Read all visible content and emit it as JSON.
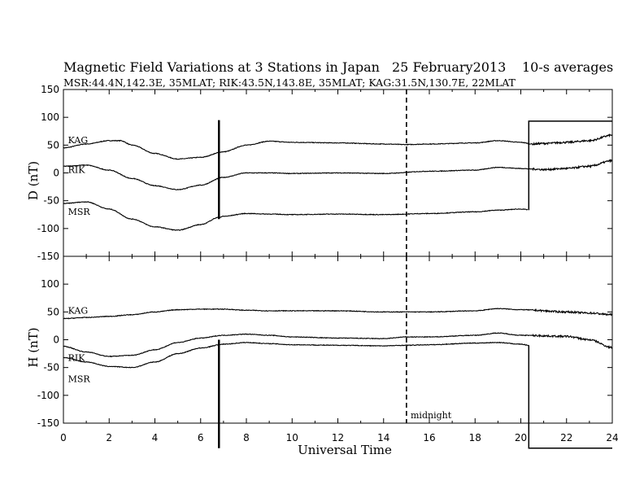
{
  "header": {
    "title": "Magnetic Field Variations at 3 Stations in Japan",
    "date": "25 February2013",
    "averaging": "10-s averages",
    "stations": "MSR:44.4N,142.3E, 35MLAT;  RIK:43.5N,143.8E, 35MLAT;  KAG:31.5N,130.7E, 22MLAT"
  },
  "chart_data": [
    {
      "type": "line",
      "panel": "D",
      "ylabel": "D (nT)",
      "xlim": [
        0,
        24
      ],
      "ylim": [
        -150,
        150
      ],
      "yticks": [
        150,
        100,
        50,
        0,
        -50,
        -100,
        -150
      ],
      "series": [
        {
          "name": "KAG",
          "x": [
            0,
            1,
            2,
            2.5,
            3,
            4,
            5,
            6,
            7,
            8,
            9,
            10,
            12,
            14,
            15,
            16,
            18,
            19,
            20,
            20.5,
            21,
            22,
            23,
            24
          ],
          "y": [
            45,
            52,
            58,
            58,
            50,
            35,
            25,
            28,
            38,
            50,
            57,
            55,
            54,
            52,
            51,
            52,
            54,
            58,
            55,
            52,
            53,
            55,
            58,
            68
          ]
        },
        {
          "name": "RIK",
          "x": [
            0,
            1,
            2,
            3,
            4,
            5,
            6,
            7,
            8,
            9,
            10,
            12,
            14,
            16,
            18,
            19,
            20,
            20.5,
            21,
            22,
            23,
            24
          ],
          "y": [
            12,
            14,
            5,
            -10,
            -23,
            -30,
            -22,
            -8,
            0,
            0,
            -1,
            0,
            -1,
            3,
            5,
            10,
            8,
            7,
            6,
            8,
            12,
            22
          ]
        },
        {
          "name": "MSR",
          "x": [
            0,
            1,
            2,
            3,
            4,
            5,
            6,
            6.8,
            7,
            8,
            9,
            10,
            12,
            14,
            16,
            18,
            19,
            20,
            20.3
          ],
          "y": [
            -55,
            -52,
            -65,
            -83,
            -97,
            -103,
            -93,
            -80,
            -78,
            -73,
            -74,
            -75,
            -74,
            -75,
            -73,
            -70,
            -67,
            -65,
            -66
          ]
        }
      ],
      "markers": [
        {
          "kind": "solid-vertical",
          "x": 6.8,
          "y_from": -83,
          "y_to": 95
        },
        {
          "kind": "dashed-vertical",
          "x": 15
        },
        {
          "kind": "step",
          "points": [
            [
              20.35,
              -67
            ],
            [
              20.35,
              93
            ],
            [
              24,
              93
            ]
          ]
        }
      ]
    },
    {
      "type": "line",
      "panel": "H",
      "ylabel": "H (nT)",
      "xlabel": "Universal Time",
      "xlim": [
        0,
        24
      ],
      "ylim": [
        -150,
        150
      ],
      "xticks": [
        0,
        2,
        4,
        6,
        8,
        10,
        12,
        14,
        16,
        18,
        20,
        22,
        24
      ],
      "yticks": [
        150,
        100,
        50,
        0,
        -50,
        -100,
        -150
      ],
      "series": [
        {
          "name": "KAG",
          "x": [
            0,
            1,
            2,
            3,
            4,
            5,
            6,
            7,
            8,
            9,
            10,
            12,
            14,
            16,
            18,
            19,
            20,
            22,
            23,
            24
          ],
          "y": [
            38,
            40,
            42,
            45,
            50,
            54,
            55,
            55,
            53,
            52,
            52,
            52,
            50,
            50,
            52,
            56,
            54,
            50,
            48,
            45
          ]
        },
        {
          "name": "RIK",
          "x": [
            0,
            1,
            2,
            3,
            4,
            5,
            6,
            7,
            8,
            9,
            10,
            12,
            14,
            15,
            16,
            18,
            19,
            20,
            22,
            23,
            24
          ],
          "y": [
            -12,
            -22,
            -30,
            -28,
            -18,
            -5,
            3,
            8,
            10,
            8,
            5,
            3,
            2,
            5,
            5,
            8,
            12,
            8,
            6,
            0,
            -14
          ]
        },
        {
          "name": "MSR",
          "x": [
            0,
            1,
            2,
            3,
            4,
            5,
            6,
            7,
            8,
            9,
            10,
            12,
            14,
            15,
            16,
            18,
            19,
            20,
            20.35
          ],
          "y": [
            -32,
            -40,
            -48,
            -50,
            -40,
            -25,
            -15,
            -8,
            -5,
            -7,
            -9,
            -10,
            -11,
            -10,
            -9,
            -6,
            -5,
            -8,
            -10
          ]
        }
      ],
      "markers": [
        {
          "kind": "solid-vertical",
          "x": 6.8,
          "y_from": 0,
          "y_to": -195
        },
        {
          "kind": "dashed-vertical",
          "x": 15
        },
        {
          "kind": "step",
          "points": [
            [
              20.35,
              -10
            ],
            [
              20.35,
              -195
            ],
            [
              24,
              -195
            ]
          ]
        }
      ],
      "annotations": [
        "midnight"
      ]
    }
  ]
}
